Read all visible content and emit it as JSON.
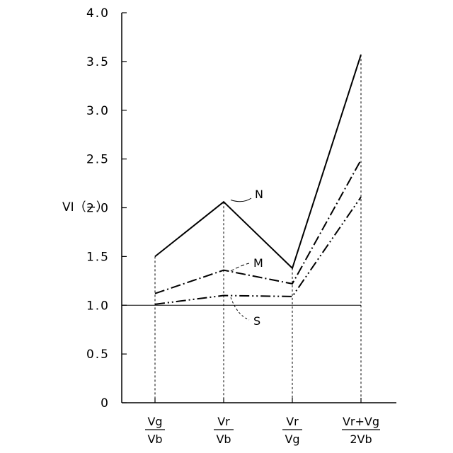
{
  "chart_data": {
    "type": "line",
    "ylabel": "VI（−）",
    "ylim": [
      0,
      4.0
    ],
    "yticks": [
      "0",
      "0.5",
      "1.0",
      "1.5",
      "2.0",
      "2.5",
      "3.0",
      "3.5",
      "4.0"
    ],
    "categories": [
      {
        "num": "Vg",
        "den": "Vb"
      },
      {
        "num": "Vr",
        "den": "Vb"
      },
      {
        "num": "Vr",
        "den": "Vg"
      },
      {
        "num": "Vr+Vg",
        "den": "2Vb"
      }
    ],
    "reference_line": 1.0,
    "series": [
      {
        "name": "N",
        "values": [
          1.5,
          2.06,
          1.38,
          3.57
        ],
        "style": "solid"
      },
      {
        "name": "M",
        "values": [
          1.12,
          1.36,
          1.22,
          2.49
        ],
        "style": "dash-dot"
      },
      {
        "name": "S",
        "values": [
          1.01,
          1.1,
          1.09,
          2.11
        ],
        "style": "dash-dot-dot"
      }
    ],
    "grid": false,
    "legend": "inline callouts"
  }
}
